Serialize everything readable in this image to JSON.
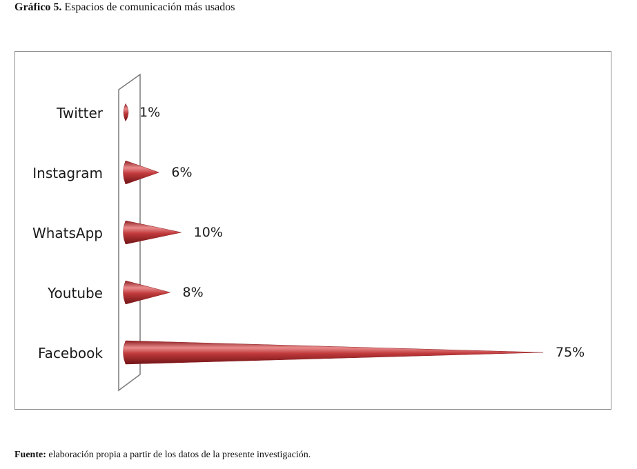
{
  "caption": {
    "label": "Gráfico 5.",
    "text": "Espacios de comunicación más usados"
  },
  "source": {
    "label": "Fuente:",
    "text": "elaboración propia a partir de los datos de la presente investigación."
  },
  "chart_data": {
    "type": "bar",
    "orientation": "horizontal",
    "bar_shape": "cone",
    "categories": [
      "Twitter",
      "Instagram",
      "WhatsApp",
      "Youtube",
      "Facebook"
    ],
    "values": [
      1,
      6,
      10,
      8,
      75
    ],
    "value_labels": [
      "1%",
      "6%",
      "10%",
      "8%",
      "75%"
    ],
    "xlim": [
      0,
      75
    ],
    "grid": false,
    "legend": "none",
    "colors": {
      "bar": "#c0393b",
      "bar_dark": "#8e1f22",
      "bar_light": "#e98b8c",
      "frame": "#8c8c8c"
    }
  }
}
